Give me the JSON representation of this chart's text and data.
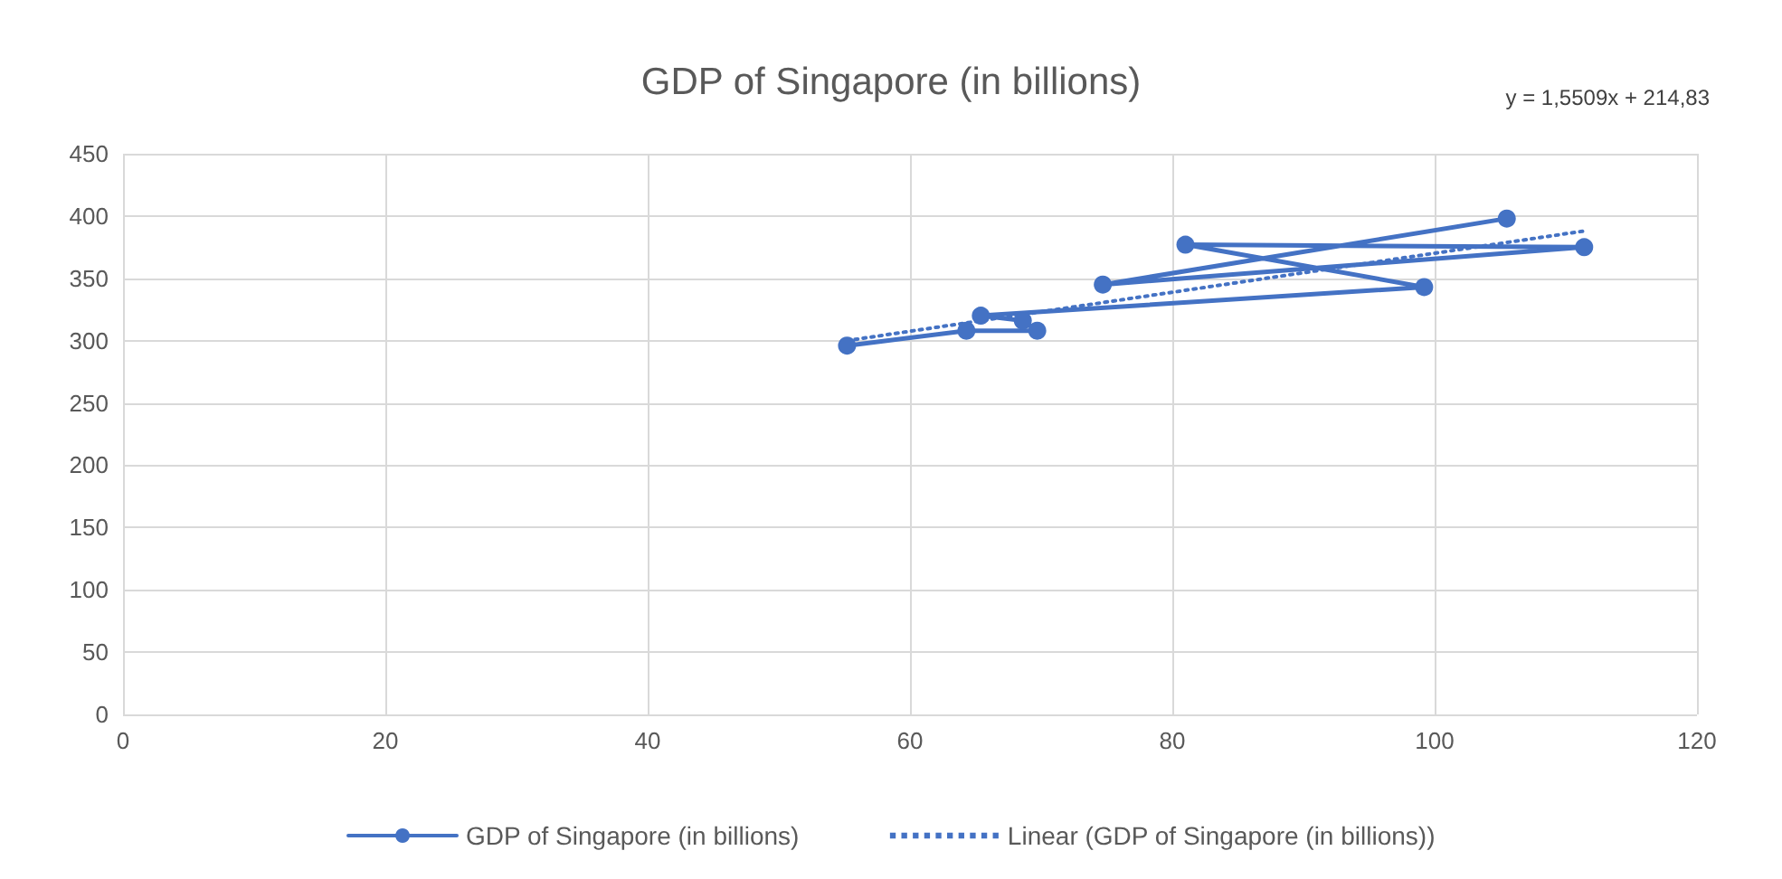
{
  "chart_data": {
    "type": "line",
    "title": "GDP of Singapore (in billions)",
    "annotations": [
      "y = 1,5509x + 214,83"
    ],
    "xlim": [
      0,
      120
    ],
    "xticks": [
      0,
      20,
      40,
      60,
      80,
      100,
      120
    ],
    "ylim": [
      0,
      450
    ],
    "yticks": [
      0,
      50,
      100,
      150,
      200,
      250,
      300,
      350,
      400,
      450
    ],
    "grid": true,
    "legend": "bottom",
    "series": [
      {
        "name": "GDP of Singapore (in billions)",
        "color": "#4472c4",
        "marker": "circle",
        "line_style": "solid",
        "x": [
          55.2,
          64.3,
          69.7,
          68.6,
          65.4,
          99.2,
          81.0,
          111.4,
          74.7,
          105.5
        ],
        "values": [
          296,
          308,
          308,
          316,
          320,
          343,
          377,
          375,
          345,
          398
        ]
      },
      {
        "name": "Linear (GDP of Singapore (in billions))",
        "color": "#4472c4",
        "marker": "none",
        "line_style": "dotted",
        "x": [
          55.2,
          111.4
        ],
        "values": [
          300,
          388
        ]
      }
    ]
  }
}
